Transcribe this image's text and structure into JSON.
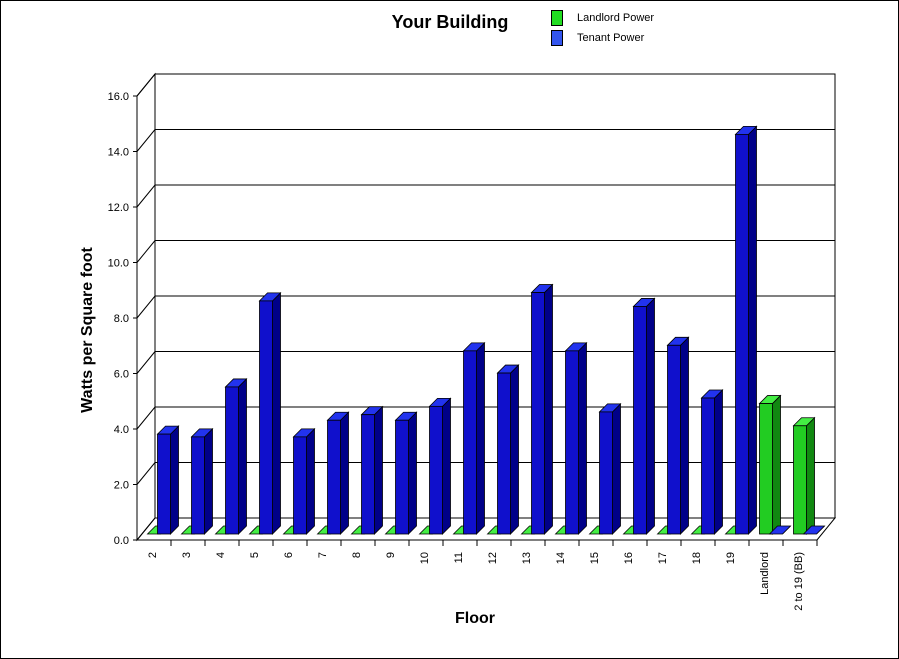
{
  "chart_data": {
    "type": "bar",
    "title": "Your Building",
    "xlabel": "Floor",
    "ylabel": "Watts per Square foot",
    "ylim": [
      0,
      16
    ],
    "yticks": [
      "0.0",
      "2.0",
      "4.0",
      "6.0",
      "8.0",
      "10.0",
      "12.0",
      "14.0",
      "16.0"
    ],
    "categories": [
      "2",
      "3",
      "4",
      "5",
      "6",
      "7",
      "8",
      "9",
      "10",
      "11",
      "12",
      "13",
      "14",
      "15",
      "16",
      "17",
      "18",
      "19",
      "Landlord",
      "2 to 19 (BB)"
    ],
    "series": [
      {
        "name": "Landlord Power",
        "color": "#22dd22",
        "values": [
          0,
          0,
          0,
          0,
          0,
          0,
          0,
          0,
          0,
          0,
          0,
          0,
          0,
          0,
          0,
          0,
          0,
          0,
          4.7,
          3.9
        ]
      },
      {
        "name": "Tenant Power",
        "color": "#1010cc",
        "values": [
          3.6,
          3.5,
          5.3,
          8.4,
          3.5,
          4.1,
          4.3,
          4.1,
          4.6,
          6.6,
          5.8,
          8.7,
          6.6,
          4.4,
          8.2,
          6.8,
          4.9,
          14.4,
          0,
          0
        ]
      }
    ],
    "grid": true,
    "legend_position": "top-right",
    "style": "3d"
  },
  "legend": {
    "landlord_label": "Landlord Power",
    "tenant_label": "Tenant Power",
    "landlord_color": "#22dd22",
    "tenant_color": "#3355ee"
  }
}
